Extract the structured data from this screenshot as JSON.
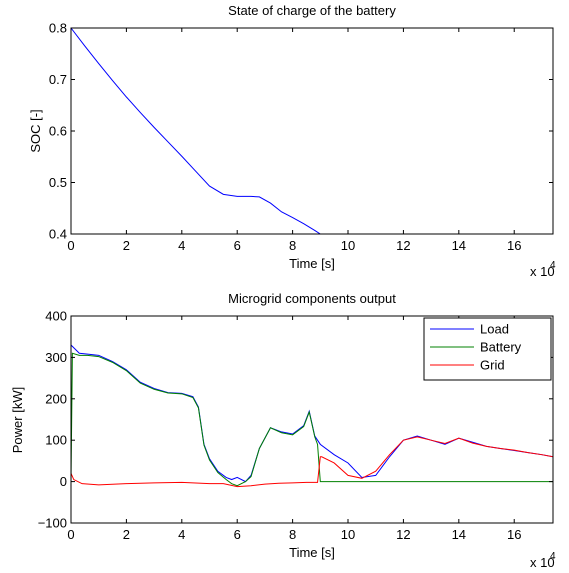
{
  "chart_data": [
    {
      "type": "line",
      "title": "State of charge of the battery",
      "xlabel": "Time [s]",
      "ylabel": "SOC [-]",
      "x_exponent_label": "x 10",
      "x_exponent_power": "4",
      "xlim": [
        0,
        17.4
      ],
      "ylim": [
        0.4,
        0.8
      ],
      "xticks": [
        0,
        2,
        4,
        6,
        8,
        10,
        12,
        14,
        16
      ],
      "yticks": [
        0.4,
        0.5,
        0.6,
        0.7,
        0.8
      ],
      "ytick_labels": [
        "0.4",
        "0.5",
        "0.6",
        "0.7",
        "0.8"
      ],
      "grid": false,
      "series": [
        {
          "color": "#0000ff",
          "x": [
            0,
            0.5,
            1,
            1.5,
            2,
            2.5,
            3,
            3.5,
            4,
            4.5,
            5,
            5.5,
            6,
            6.5,
            6.8,
            7.2,
            7.6,
            8.0,
            8.4,
            8.8,
            9.0,
            9.5,
            10,
            12,
            14,
            16,
            17.4
          ],
          "y": [
            0.8,
            0.765,
            0.731,
            0.698,
            0.666,
            0.636,
            0.607,
            0.579,
            0.551,
            0.522,
            0.493,
            0.477,
            0.473,
            0.473,
            0.472,
            0.46,
            0.443,
            0.432,
            0.42,
            0.407,
            0.4,
            0.4,
            0.4,
            0.4,
            0.4,
            0.4,
            0.4
          ]
        }
      ]
    },
    {
      "type": "line",
      "title": "Microgrid components output",
      "xlabel": "Time [s]",
      "ylabel": "Power [kW]",
      "x_exponent_label": "x 10",
      "x_exponent_power": "4",
      "xlim": [
        0,
        17.4
      ],
      "ylim": [
        -100,
        400
      ],
      "xticks": [
        0,
        2,
        4,
        6,
        8,
        10,
        12,
        14,
        16
      ],
      "yticks": [
        -100,
        0,
        100,
        200,
        300,
        400
      ],
      "ytick_labels": [
        "−100",
        "0",
        "100",
        "200",
        "300",
        "400"
      ],
      "grid": false,
      "legend_position": "top-right",
      "series": [
        {
          "name": "Load",
          "color": "#0000ff",
          "x": [
            0,
            0.3,
            0.6,
            1,
            1.5,
            2,
            2.5,
            3,
            3.5,
            4,
            4.4,
            4.6,
            4.8,
            5,
            5.3,
            5.6,
            5.8,
            6,
            6.3,
            6.5,
            6.8,
            7.2,
            7.6,
            8.0,
            8.4,
            8.6,
            8.8,
            9.0,
            9.5,
            10,
            10.5,
            11,
            11.5,
            12,
            12.5,
            13,
            13.5,
            14,
            14.5,
            15,
            15.5,
            16,
            16.5,
            17,
            17.4
          ],
          "y": [
            330,
            310,
            308,
            305,
            290,
            270,
            240,
            225,
            215,
            213,
            205,
            180,
            90,
            55,
            25,
            10,
            5,
            10,
            0,
            15,
            80,
            130,
            120,
            115,
            135,
            170,
            110,
            90,
            65,
            45,
            10,
            15,
            60,
            100,
            110,
            100,
            90,
            105,
            95,
            85,
            80,
            75,
            70,
            65,
            60
          ]
        },
        {
          "name": "Battery",
          "color": "#008000",
          "x": [
            0,
            0.05,
            0.3,
            0.6,
            1,
            1.5,
            2,
            2.5,
            3,
            3.5,
            4,
            4.4,
            4.6,
            4.8,
            5,
            5.3,
            5.6,
            5.8,
            6,
            6.3,
            6.5,
            6.8,
            7.2,
            7.6,
            8.0,
            8.4,
            8.6,
            8.8,
            8.9,
            9.0,
            10,
            12,
            14,
            16,
            17.4
          ],
          "y": [
            0,
            310,
            305,
            305,
            302,
            288,
            268,
            238,
            223,
            214,
            212,
            203,
            178,
            88,
            52,
            22,
            5,
            -5,
            -10,
            0,
            12,
            80,
            130,
            118,
            113,
            133,
            168,
            108,
            90,
            0,
            0,
            0,
            0,
            0,
            0
          ]
        },
        {
          "name": "Grid",
          "color": "#ff0000",
          "x": [
            0,
            0.1,
            0.4,
            1,
            2,
            3,
            4,
            5,
            5.5,
            6,
            6.5,
            7,
            7.5,
            8,
            8.5,
            8.9,
            9.0,
            9.05,
            9.5,
            10,
            10.5,
            11,
            11.5,
            12,
            12.5,
            13,
            13.5,
            14,
            14.5,
            15,
            15.5,
            16,
            16.5,
            17,
            17.4
          ],
          "y": [
            20,
            5,
            -5,
            -8,
            -5,
            -3,
            -2,
            -5,
            -5,
            -12,
            -10,
            -6,
            -4,
            -3,
            -2,
            -2,
            60,
            60,
            45,
            15,
            8,
            25,
            65,
            100,
            108,
            100,
            92,
            105,
            93,
            85,
            80,
            76,
            70,
            65,
            60
          ]
        }
      ]
    }
  ]
}
